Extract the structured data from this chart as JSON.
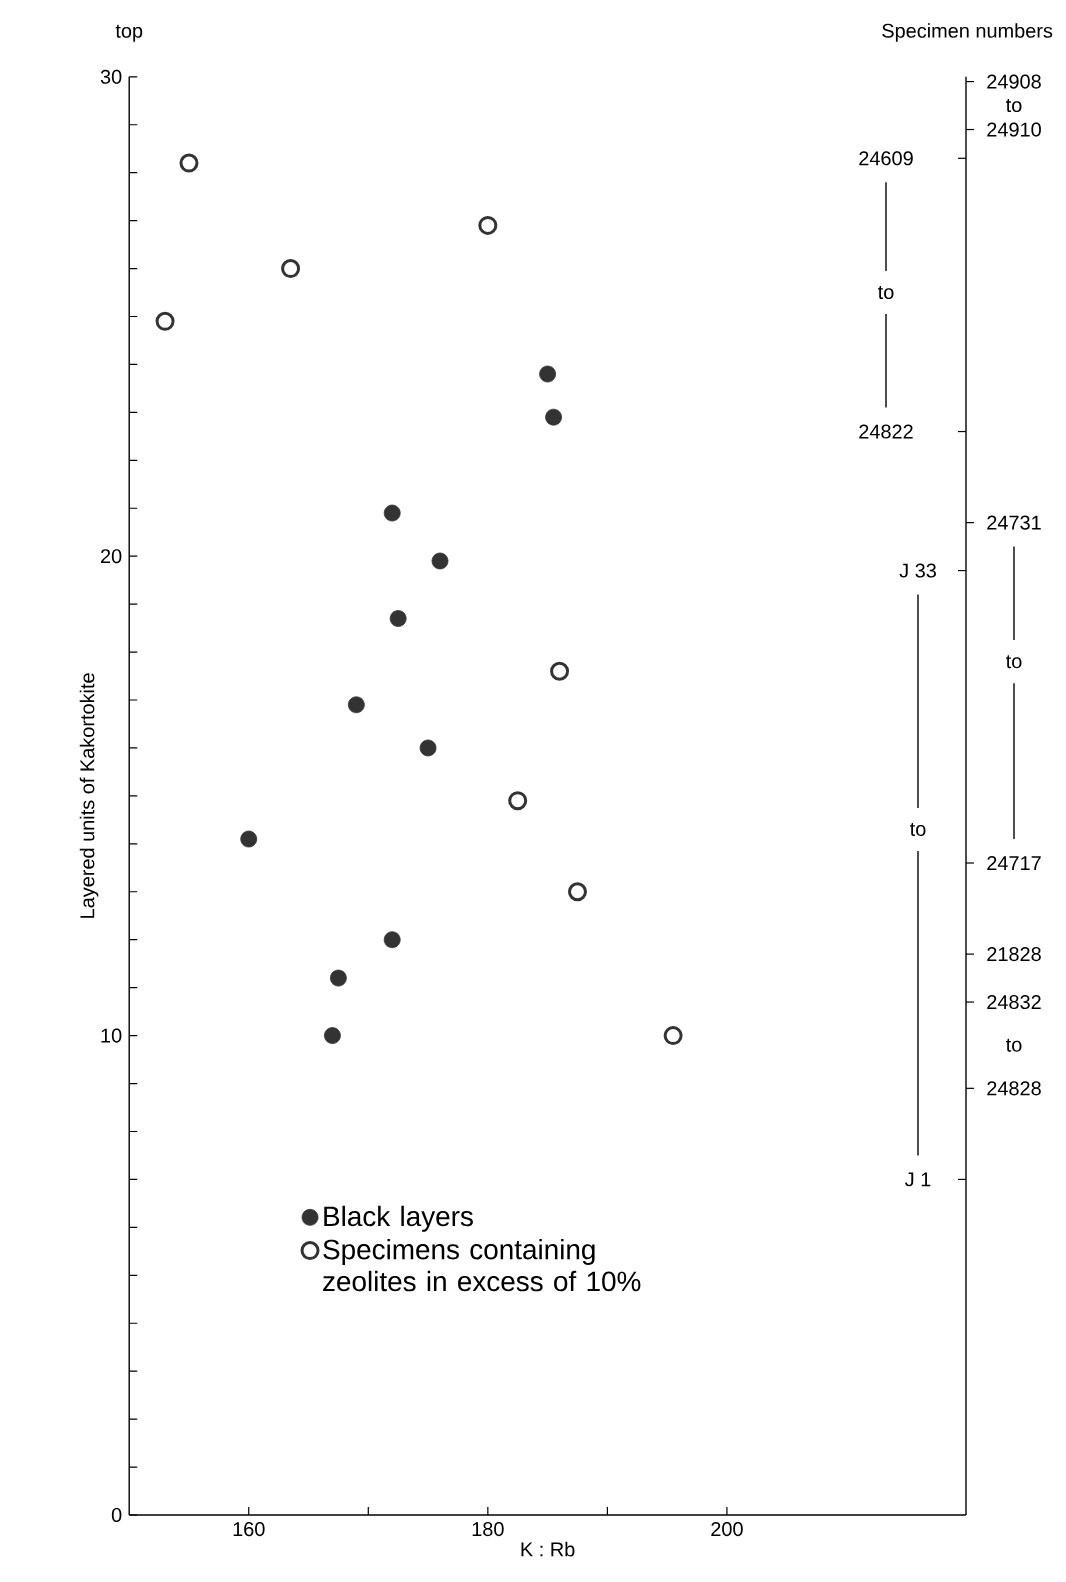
{
  "chart_data": {
    "type": "scatter",
    "xlabel": "K : Rb",
    "ylabel": "Layered units of Kakortokite",
    "annotations": [
      "top",
      "Specimen numbers",
      "24908",
      "to",
      "24910",
      "24609",
      "to",
      "24822",
      "24731",
      "to",
      "24717",
      "J 33",
      "to",
      "J 1",
      "21828",
      "24832",
      "to",
      "24828"
    ],
    "xlim": [
      150,
      220
    ],
    "ylim": [
      0,
      30
    ],
    "xticks": [
      {
        "value": 160,
        "label": "160"
      },
      {
        "value": 170,
        "label": null
      },
      {
        "value": 180,
        "label": "180"
      },
      {
        "value": 190,
        "label": null
      },
      {
        "value": 200,
        "label": "200"
      }
    ],
    "yticks": [
      0,
      {
        "value": 1,
        "label": null
      },
      {
        "value": 2,
        "label": null
      },
      {
        "value": 3,
        "label": null
      },
      {
        "value": 4,
        "label": null
      },
      {
        "value": 5,
        "label": null
      },
      {
        "value": 6,
        "label": null
      },
      {
        "value": 7,
        "label": null
      },
      {
        "value": 8,
        "label": null
      },
      {
        "value": 9,
        "label": null
      },
      10,
      {
        "value": 11,
        "label": null
      },
      {
        "value": 12,
        "label": null
      },
      {
        "value": 13,
        "label": null
      },
      {
        "value": 14,
        "label": null
      },
      {
        "value": 15,
        "label": null
      },
      {
        "value": 16,
        "label": null
      },
      {
        "value": 17,
        "label": null
      },
      {
        "value": 18,
        "label": null
      },
      {
        "value": 19,
        "label": null
      },
      20,
      {
        "value": 21,
        "label": null
      },
      {
        "value": 22,
        "label": null
      },
      {
        "value": 23,
        "label": null
      },
      {
        "value": 24,
        "label": null
      },
      {
        "value": 25,
        "label": null
      },
      {
        "value": 26,
        "label": null
      },
      {
        "value": 27,
        "label": null
      },
      {
        "value": 28,
        "label": null
      },
      {
        "value": 29,
        "label": null
      },
      30
    ],
    "legend": "bottom",
    "marker": "circle",
    "series": [
      {
        "name": "Black layers",
        "color": "#333333",
        "x": [
          185,
          185.5,
          172,
          176,
          172.5,
          169,
          175,
          160,
          172,
          167.5,
          167
        ],
        "values": [
          23.8,
          22.9,
          20.9,
          19.9,
          18.7,
          16.9,
          16.0,
          14.1,
          12.0,
          11.2,
          10.0
        ]
      },
      {
        "name": "Specimens containing zeolites in excess of 10%",
        "color": "#333333",
        "x": [
          155,
          180,
          163.5,
          153,
          186,
          182.5,
          187.5,
          195.5
        ],
        "values": [
          28.2,
          26.9,
          26.0,
          24.9,
          17.6,
          14.9,
          13.0,
          10.0
        ]
      }
    ]
  }
}
